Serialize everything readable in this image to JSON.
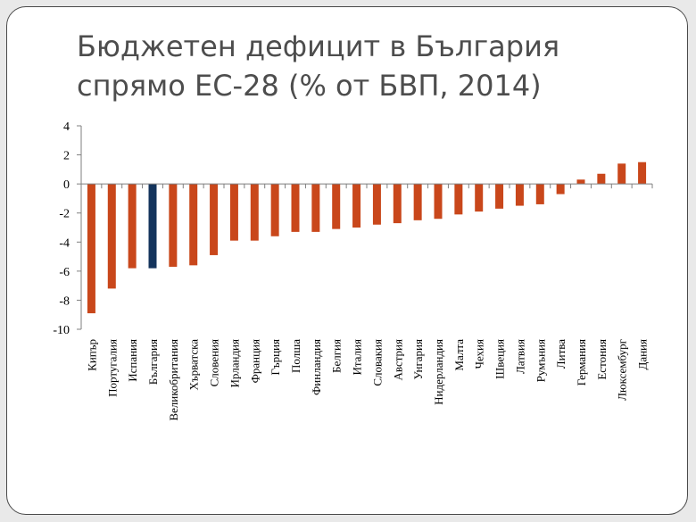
{
  "chart_data": {
    "type": "bar",
    "title": "Бюджетен дефицит в България спрямо ЕС-28 (% от БВП, 2014)",
    "xlabel": "",
    "ylabel": "",
    "ylim": [
      -10,
      4
    ],
    "yticks": [
      "4",
      "2",
      "0",
      "-2",
      "-4",
      "-6",
      "-8",
      "-10"
    ],
    "grid": false,
    "legend": "none",
    "categories": [
      "Кипър",
      "Португалия",
      "Испания",
      "България",
      "Великобритания",
      "Хърватска",
      "Словения",
      "Ирландия",
      "Франция",
      "Гърция",
      "Полша",
      "Финландия",
      "Белгия",
      "Италия",
      "Словакия",
      "Австрия",
      "Унгария",
      "Нидерландия",
      "Малта",
      "Чехия",
      "Швеция",
      "Латвия",
      "Румъния",
      "Литва",
      "Германия",
      "Естония",
      "Люксембург",
      "Дания"
    ],
    "values": [
      -8.9,
      -7.2,
      -5.8,
      -5.8,
      -5.7,
      -5.6,
      -4.9,
      -3.9,
      -3.9,
      -3.6,
      -3.3,
      -3.3,
      -3.1,
      -3.0,
      -2.8,
      -2.7,
      -2.5,
      -2.4,
      -2.1,
      -1.9,
      -1.7,
      -1.5,
      -1.4,
      -0.7,
      0.3,
      0.7,
      1.4,
      1.5
    ],
    "highlight": "България",
    "colors": {
      "bar": "#c9471b",
      "highlight": "#14345c",
      "axis": "#7f7f7f"
    }
  }
}
